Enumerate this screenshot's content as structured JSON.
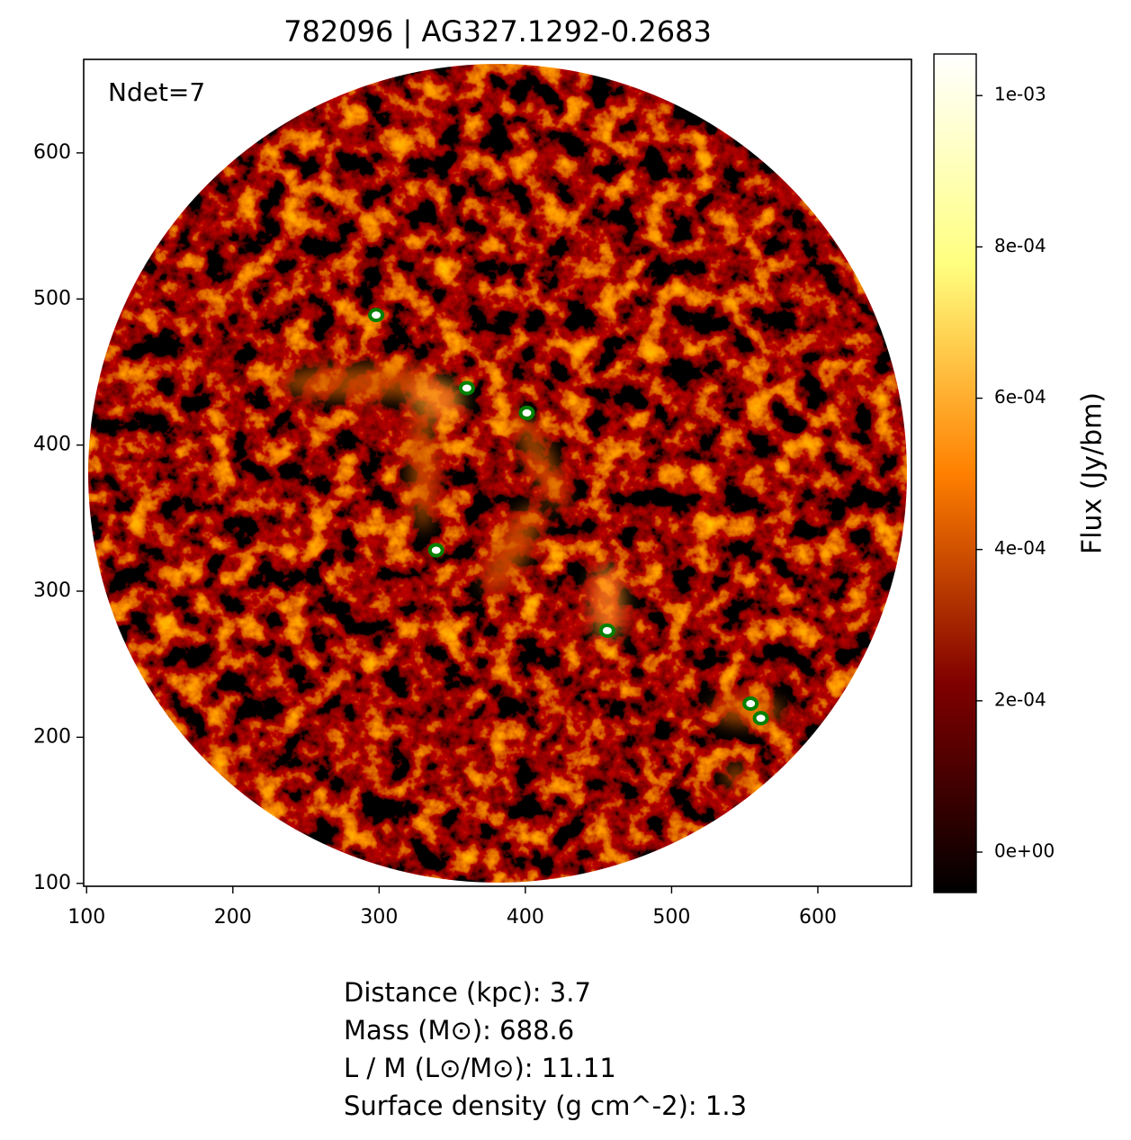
{
  "chart_data": {
    "type": "image",
    "title": "782096 | AG327.1292-0.2683",
    "annotation": "Ndet=7",
    "xlim": [
      98,
      664
    ],
    "ylim": [
      98,
      664
    ],
    "xticks": [
      100,
      200,
      300,
      400,
      500,
      600
    ],
    "yticks": [
      100,
      200,
      300,
      400,
      500,
      600
    ],
    "detections": {
      "color": "#008000",
      "x": [
        298,
        360,
        401,
        339,
        456,
        554,
        561
      ],
      "y": [
        489,
        439,
        422,
        328,
        273,
        223,
        213
      ]
    },
    "colorbar": {
      "label": "Flux (Jy/bm)",
      "lim": [
        -5.35e-05,
        0.001055
      ],
      "colors": [
        "#000000",
        "#800000",
        "#ff8000",
        "#ffff80",
        "#ffffff"
      ],
      "ticks": [
        {
          "value": 0,
          "label": "0e+00"
        },
        {
          "value": 0.0002,
          "label": "2e-04"
        },
        {
          "value": 0.0004,
          "label": "4e-04"
        },
        {
          "value": 0.0006,
          "label": "6e-04"
        },
        {
          "value": 0.0008,
          "label": "8e-04"
        },
        {
          "value": 0.001,
          "label": "1e-03"
        }
      ]
    },
    "info": [
      "Distance (kpc): 3.7",
      "Mass (M⊙): 688.6",
      "L / M (L⊙/M⊙): 11.11",
      "Surface density (g cm^-2): 1.3"
    ]
  }
}
